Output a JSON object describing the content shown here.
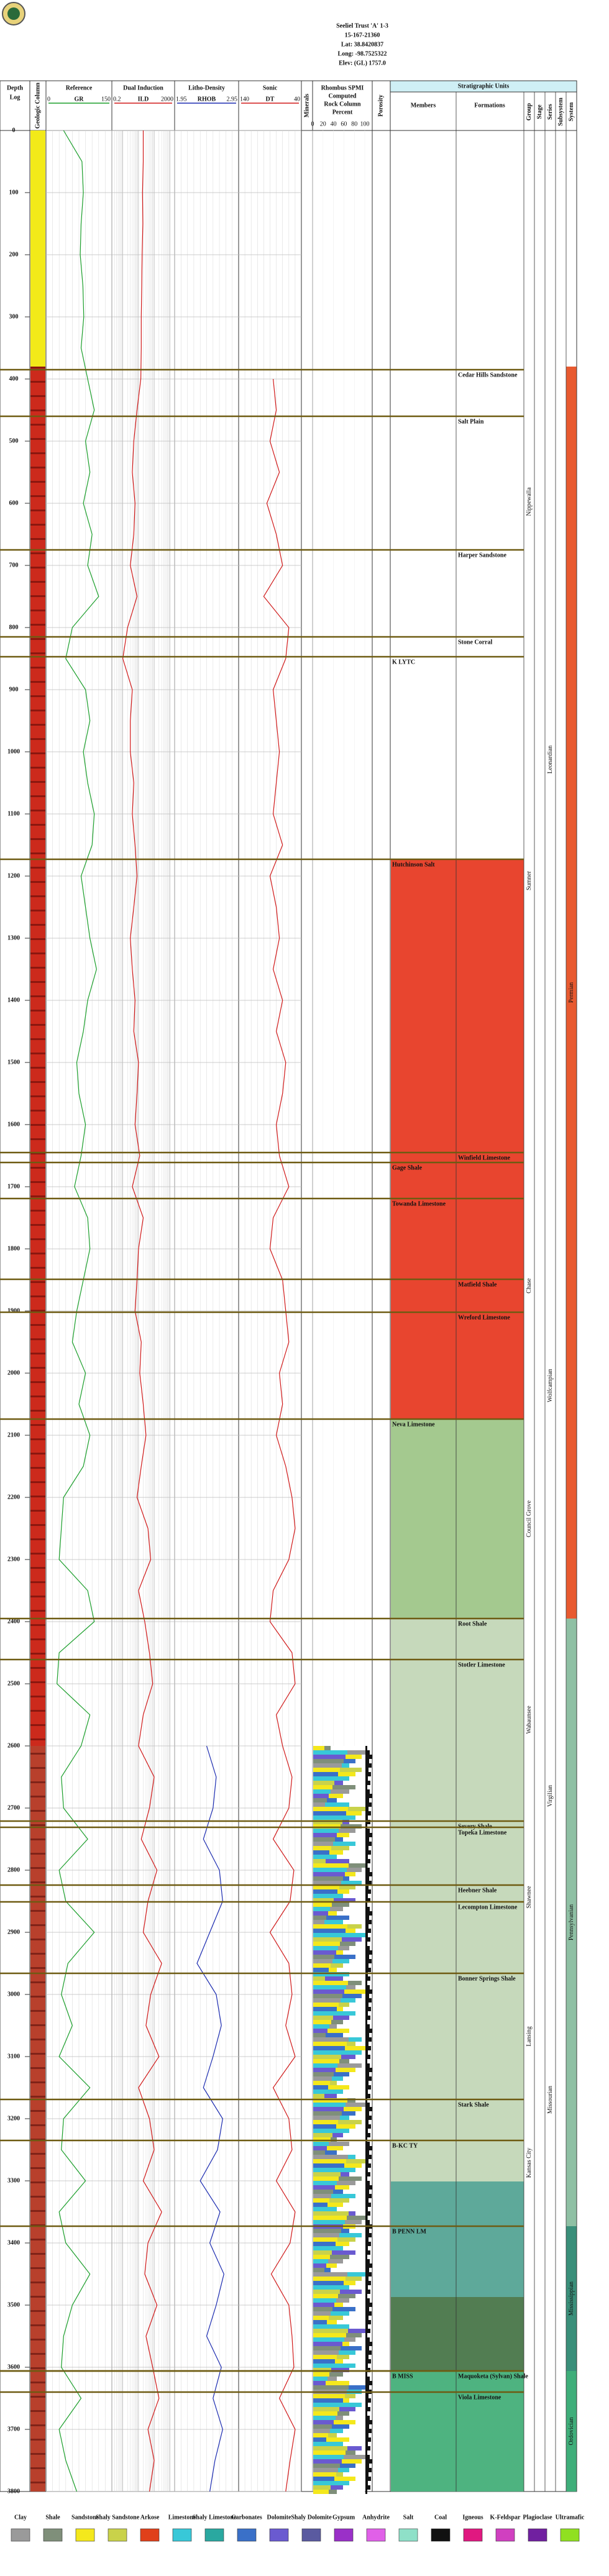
{
  "chart_data": {
    "type": "welllog",
    "header": [
      "Seeliel Trust 'A' 1-3",
      "15-167-21360",
      "Lat: 38.8420837",
      "Long: -98.7525322",
      "Elev: (GL) 1757.0"
    ],
    "depth_title": "Depth",
    "depth_unit": "Log",
    "side_titles": [
      "Geologic Column",
      "Minerals",
      "Porosity"
    ],
    "ylim": [
      0,
      3800
    ],
    "yticks": [
      0,
      100,
      200,
      300,
      400,
      500,
      600,
      700,
      800,
      900,
      1000,
      1100,
      1200,
      1300,
      1400,
      1500,
      1600,
      1700,
      1800,
      1900,
      2000,
      2100,
      2200,
      2300,
      2400,
      2500,
      2600,
      2700,
      2800,
      2900,
      3000,
      3100,
      3200,
      3300,
      3400,
      3500,
      3600,
      3700,
      3800
    ],
    "depths": [
      0,
      50,
      100,
      150,
      200,
      250,
      300,
      350,
      400,
      450,
      500,
      550,
      600,
      650,
      700,
      750,
      800,
      850,
      900,
      950,
      1000,
      1050,
      1100,
      1150,
      1200,
      1250,
      1300,
      1350,
      1400,
      1450,
      1500,
      1550,
      1600,
      1650,
      1700,
      1750,
      1800,
      1850,
      1900,
      1950,
      2000,
      2050,
      2100,
      2150,
      2200,
      2250,
      2300,
      2350,
      2400,
      2450,
      2500,
      2550,
      2600,
      2650,
      2700,
      2750,
      2800,
      2850,
      2900,
      2950,
      3000,
      3050,
      3100,
      3150,
      3200,
      3250,
      3300,
      3350,
      3400,
      3450,
      3500,
      3550,
      3600,
      3650,
      3700,
      3750,
      3800
    ],
    "tracks": [
      {
        "title": "Reference",
        "series": [
          {
            "name": "GR",
            "color": "#1a9e2a",
            "xlim": [
              0,
              150
            ],
            "log": false,
            "values": [
              40,
              82,
              85,
              80,
              78,
              84,
              86,
              80,
              95,
              110,
              90,
              100,
              85,
              105,
              95,
              120,
              60,
              45,
              90,
              100,
              85,
              95,
              110,
              105,
              80,
              90,
              100,
              115,
              95,
              85,
              70,
              75,
              90,
              80,
              65,
              95,
              100,
              85,
              70,
              60,
              90,
              75,
              100,
              85,
              40,
              35,
              30,
              95,
              110,
              30,
              25,
              100,
              80,
              35,
              40,
              95,
              30,
              45,
              110,
              50,
              35,
              60,
              30,
              100,
              40,
              35,
              90,
              30,
              45,
              100,
              60,
              40,
              35,
              80,
              30,
              45,
              70
            ]
          }
        ]
      },
      {
        "title": "Dual Induction",
        "series": [
          {
            "name": "ILD",
            "color": "#d01818",
            "xlim": [
              0.2,
              2000
            ],
            "log": true,
            "values": [
              20,
              20,
              18,
              19,
              17,
              16,
              15,
              15,
              14,
              8,
              5,
              4,
              6,
              5,
              3,
              8,
              2,
              1,
              4,
              3,
              3,
              5,
              4,
              6,
              8,
              5,
              3,
              4,
              6,
              5,
              10,
              8,
              6,
              12,
              4,
              20,
              10,
              8,
              6,
              15,
              12,
              20,
              30,
              15,
              8,
              40,
              60,
              10,
              25,
              50,
              80,
              20,
              10,
              100,
              50,
              15,
              150,
              40,
              20,
              300,
              60,
              30,
              200,
              10,
              50,
              100,
              20,
              300,
              40,
              25,
              150,
              30,
              80,
              200,
              40,
              100,
              50
            ]
          }
        ]
      },
      {
        "title": "Litho-Density",
        "series": [
          {
            "name": "RHOB",
            "color": "#1a2ab0",
            "xlim": [
              1.95,
              2.95
            ],
            "log": false,
            "values": [
              null,
              null,
              null,
              null,
              null,
              null,
              null,
              null,
              null,
              null,
              null,
              null,
              null,
              null,
              null,
              null,
              null,
              null,
              null,
              null,
              null,
              null,
              null,
              null,
              null,
              null,
              null,
              null,
              null,
              null,
              null,
              null,
              null,
              null,
              null,
              null,
              null,
              null,
              null,
              null,
              null,
              null,
              null,
              null,
              null,
              null,
              null,
              null,
              null,
              null,
              null,
              null,
              2.45,
              2.6,
              2.55,
              2.4,
              2.65,
              2.7,
              2.5,
              2.3,
              2.6,
              2.68,
              2.55,
              2.4,
              2.7,
              2.62,
              2.35,
              2.66,
              2.5,
              2.72,
              2.6,
              2.45,
              2.68,
              2.55,
              2.7,
              2.58,
              2.5
            ]
          }
        ]
      },
      {
        "title": "Sonic",
        "series": [
          {
            "name": "DT",
            "color": "#d01818",
            "xlim": [
              140,
              40
            ],
            "log": false,
            "values": [
              null,
              null,
              null,
              null,
              null,
              null,
              null,
              null,
              85,
              80,
              90,
              75,
              95,
              80,
              70,
              100,
              60,
              65,
              85,
              80,
              75,
              80,
              85,
              70,
              90,
              80,
              75,
              85,
              70,
              80,
              65,
              70,
              80,
              75,
              60,
              85,
              90,
              70,
              65,
              60,
              75,
              70,
              80,
              65,
              55,
              50,
              60,
              85,
              90,
              55,
              50,
              80,
              70,
              55,
              60,
              85,
              52,
              58,
              90,
              60,
              55,
              65,
              50,
              85,
              60,
              55,
              80,
              50,
              58,
              88,
              60,
              55,
              52,
              75,
              50,
              58,
              65
            ]
          }
        ]
      }
    ],
    "rock_column": {
      "title": [
        "Rhombus SPMI",
        "Computed",
        "Rock Column",
        "Percent"
      ],
      "xticks": [
        0,
        20,
        40,
        60,
        80,
        100
      ]
    },
    "lithology_strip": [
      {
        "top": 0,
        "base": 380,
        "color": "#f2ea19"
      },
      {
        "top": 380,
        "base": 2600,
        "color": "#cc2a1c"
      },
      {
        "top": 2600,
        "base": 3800,
        "color": "#b8402c"
      }
    ],
    "strat": {
      "title": "Stratigraphic Units",
      "columns": [
        "Members",
        "Formations",
        "Group",
        "Stage",
        "Series",
        "Subsystem",
        "System"
      ],
      "zones": [
        {
          "top": 1173,
          "base": 2074,
          "color": "#e8452f"
        },
        {
          "top": 2074,
          "base": 2395,
          "color": "#a4c98f"
        },
        {
          "top": 2395,
          "base": 3301,
          "color": "#c6d9bb"
        },
        {
          "top": 3301,
          "base": 3487,
          "color": "#5ea99a"
        },
        {
          "top": 3487,
          "base": 3606,
          "color": "#527d52"
        },
        {
          "top": 3606,
          "base": 3800,
          "color": "#4eb380"
        }
      ],
      "members": [
        {
          "name": "K LYTC",
          "depth": 847
        },
        {
          "name": "Hutchinson Salt",
          "depth": 1173
        },
        {
          "name": "Gage Shale",
          "depth": 1661
        },
        {
          "name": "Towanda Limestone",
          "depth": 1719
        },
        {
          "name": "Neva Limestone",
          "depth": 2074
        },
        {
          "name": "B-KC TY",
          "depth": 3235
        },
        {
          "name": "B PENN LM",
          "depth": 3373
        },
        {
          "name": "B MISS",
          "depth": 3606
        }
      ],
      "formations": [
        {
          "name": "Cedar Hills Sandstone",
          "depth": 385
        },
        {
          "name": "Salt Plain",
          "depth": 460
        },
        {
          "name": "Harper Sandstone",
          "depth": 675
        },
        {
          "name": "Stone Corral",
          "depth": 815
        },
        {
          "name": "Winfield Limestone",
          "depth": 1645
        },
        {
          "name": "Matfield Shale",
          "depth": 1849
        },
        {
          "name": "Wreford Limestone",
          "depth": 1902
        },
        {
          "name": "Root Shale",
          "depth": 2395
        },
        {
          "name": "Stotler Limestone",
          "depth": 2461
        },
        {
          "name": "Severy Shale",
          "depth": 2721
        },
        {
          "name": "Topeka Limestone",
          "depth": 2731
        },
        {
          "name": "Heebner Shale",
          "depth": 2824
        },
        {
          "name": "Lecompton Limestone",
          "depth": 2851
        },
        {
          "name": "Bonner Springs Shale",
          "depth": 2966
        },
        {
          "name": "Stark Shale",
          "depth": 3169
        },
        {
          "name": "Maquoketa (Sylvan) Shale",
          "depth": 3606
        },
        {
          "name": "Viola Limestone",
          "depth": 3640
        }
      ],
      "groups": [
        {
          "name": "Nippewalla",
          "top": 380,
          "base": 815
        },
        {
          "name": "Sumner",
          "top": 815,
          "base": 1600
        },
        {
          "name": "Chase",
          "top": 1645,
          "base": 2074
        },
        {
          "name": "Council Grove",
          "top": 2074,
          "base": 2395
        },
        {
          "name": "Wabaunsee",
          "top": 2395,
          "base": 2721
        },
        {
          "name": "Shawnee",
          "top": 2721,
          "base": 2966
        },
        {
          "name": "Lansing",
          "top": 2966,
          "base": 3169
        },
        {
          "name": "Kansas City",
          "top": 3169,
          "base": 3373
        }
      ],
      "series": [
        {
          "name": "Leonardian",
          "top": 380,
          "base": 1645
        },
        {
          "name": "Wolfcampian",
          "top": 1645,
          "base": 2395
        },
        {
          "name": "Virgilian",
          "top": 2395,
          "base": 2966
        },
        {
          "name": "Missourian",
          "top": 2966,
          "base": 3373
        }
      ],
      "systems": [
        {
          "name": "Permian",
          "top": 380,
          "base": 2395,
          "color": "#e85a30"
        },
        {
          "name": "Pennsylvanian",
          "top": 2395,
          "base": 3373,
          "color": "#8fc0a4"
        },
        {
          "name": "Mississippian",
          "top": 3373,
          "base": 3606,
          "color": "#3a8f7a"
        },
        {
          "name": "Ordovician",
          "top": 3606,
          "base": 3800,
          "color": "#3fae7a"
        }
      ]
    },
    "legend": [
      {
        "name": "Clay",
        "color": "#9a9a9a"
      },
      {
        "name": "Shale",
        "color": "#7f8f7a"
      },
      {
        "name": "Sandstone",
        "color": "#f4e81c"
      },
      {
        "name": "Shaly Sandstone",
        "color": "#c9d24a"
      },
      {
        "name": "Arkose",
        "color": "#e0401a"
      },
      {
        "name": "Limestone",
        "color": "#38c8d8"
      },
      {
        "name": "Shaly Limestone",
        "color": "#2aa8a0"
      },
      {
        "name": "Carbonates",
        "color": "#3a70c8"
      },
      {
        "name": "Dolomite",
        "color": "#6a5ad0"
      },
      {
        "name": "Shaly Dolomite",
        "color": "#5a5aa0"
      },
      {
        "name": "Gypsum",
        "color": "#9a30c8"
      },
      {
        "name": "Anhydrite",
        "color": "#e060e8"
      },
      {
        "name": "Salt",
        "color": "#8fe0c8"
      },
      {
        "name": "Coal",
        "color": "#111111"
      },
      {
        "name": "Igneous",
        "color": "#e01880"
      },
      {
        "name": "K-Feldspar",
        "color": "#d040c0"
      },
      {
        "name": "Plagioclase",
        "color": "#7020a0"
      },
      {
        "name": "Ultramafic",
        "color": "#90e020"
      }
    ]
  }
}
